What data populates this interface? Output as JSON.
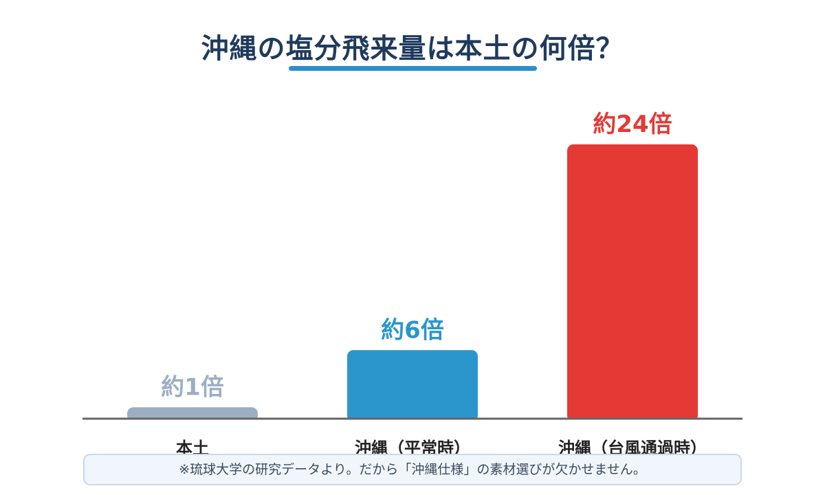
{
  "title": "沖縄の塩分飛来量は本土の何倍？",
  "chart_data": {
    "type": "bar",
    "categories": [
      "本土",
      "沖縄（平常時）",
      "沖縄（台風通過時）"
    ],
    "values": [
      1,
      6,
      24
    ],
    "data_labels": [
      "約1倍",
      "約6倍",
      "約24倍"
    ],
    "colors": [
      "#9daec3",
      "#2b96cc",
      "#e53935"
    ],
    "ylim": [
      0,
      25
    ]
  },
  "note": "※琉球大学の研究データより。だから「沖縄仕様」の素材選びが欠かせません。"
}
